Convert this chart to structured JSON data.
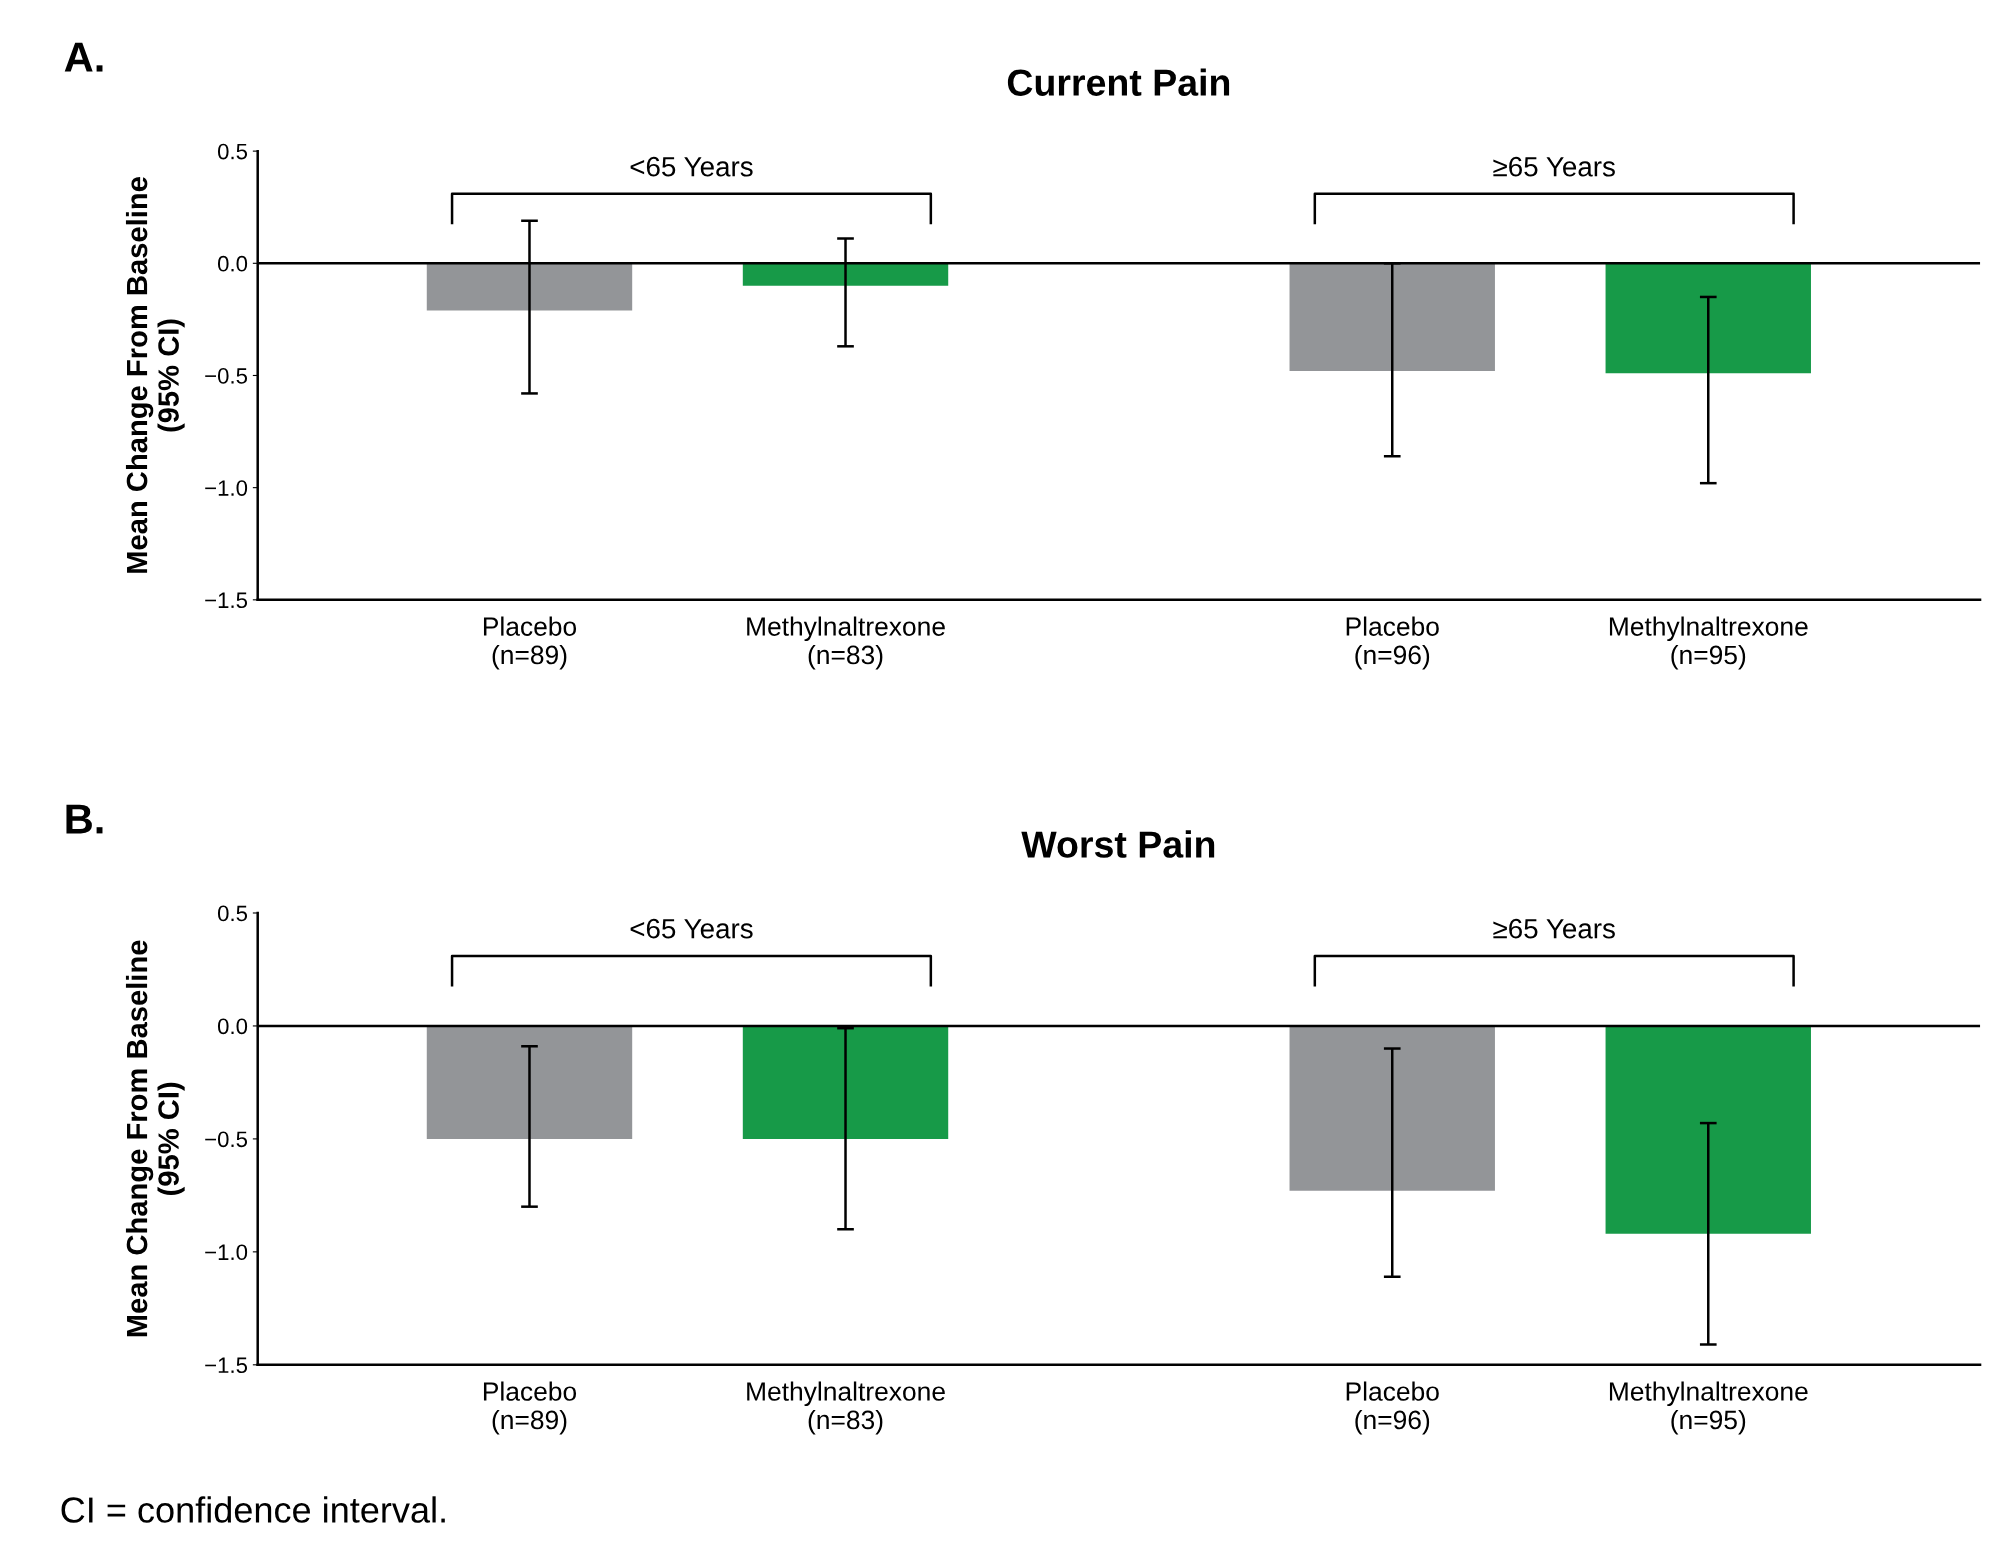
{
  "chart_data": [
    {
      "type": "bar",
      "title": "Current Pain",
      "ylabel": "Mean Change From Baseline\n(95% CI)",
      "categories": [
        "Placebo\n(n=89)",
        "Methylnaltrexone\n(n=83)",
        "Placebo\n(n=96)",
        "Methylnaltrexone\n(n=95)"
      ],
      "values": [
        -0.21,
        -0.1,
        -0.48,
        -0.49
      ],
      "errors": [
        [
          -0.58,
          0.19
        ],
        [
          -0.37,
          0.11
        ],
        [
          -0.86,
          0.0
        ],
        [
          -0.98,
          -0.15
        ]
      ],
      "colors": [
        "#939598",
        "#179a48",
        "#939598",
        "#179a48"
      ],
      "ylim": [
        -1.5,
        0.5
      ],
      "yticks": [
        {
          "value": 0.5,
          "label": "0.5"
        },
        {
          "value": 0.0,
          "label": "0.0"
        },
        {
          "value": -0.5,
          "label": "−0.5"
        },
        {
          "value": -1.0,
          "label": "−1.0"
        },
        {
          "value": -1.5,
          "label": "−1.5"
        }
      ],
      "ref_lines": [
        {
          "axis": "y",
          "value": 0,
          "label": null,
          "color": "#000000"
        }
      ],
      "annotations": [
        "A.",
        "<65 Years",
        "≥65 Years"
      ],
      "grid": false
    },
    {
      "type": "bar",
      "title": "Worst Pain",
      "ylabel": "Mean Change From Baseline\n(95% CI)",
      "categories": [
        "Placebo\n(n=89)",
        "Methylnaltrexone\n(n=83)",
        "Placebo\n(n=96)",
        "Methylnaltrexone\n(n=95)"
      ],
      "values": [
        -0.5,
        -0.5,
        -0.73,
        -0.92
      ],
      "errors": [
        [
          -0.8,
          -0.09
        ],
        [
          -0.9,
          -0.01
        ],
        [
          -1.11,
          -0.1
        ],
        [
          -1.41,
          -0.43
        ]
      ],
      "colors": [
        "#939598",
        "#179a48",
        "#939598",
        "#179a48"
      ],
      "ylim": [
        -1.5,
        0.5
      ],
      "yticks": [
        {
          "value": 0.5,
          "label": "0.5"
        },
        {
          "value": 0.0,
          "label": "0.0"
        },
        {
          "value": -0.5,
          "label": "−0.5"
        },
        {
          "value": -1.0,
          "label": "−1.0"
        },
        {
          "value": -1.5,
          "label": "−1.5"
        }
      ],
      "ref_lines": [
        {
          "axis": "y",
          "value": 0,
          "label": null,
          "color": "#000000"
        }
      ],
      "annotations": [
        "B.",
        "<65 Years",
        "≥65 Years",
        "CI = confidence interval."
      ],
      "grid": false
    }
  ]
}
